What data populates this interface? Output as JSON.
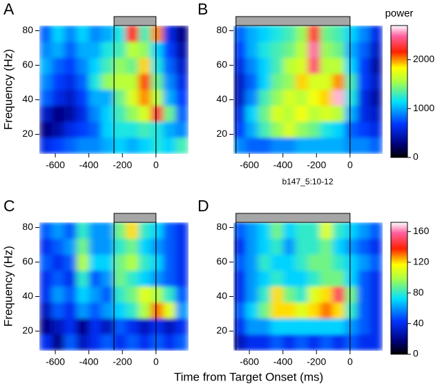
{
  "xlabel": "Time from Target Onset (ms)",
  "chart_data": [
    {
      "type": "heatmap",
      "label": "A",
      "ylabel": "Frequency (Hz)",
      "xlim": [
        -695,
        190
      ],
      "ylim": [
        9,
        83
      ],
      "xticks": [
        -600,
        -400,
        -200,
        0
      ],
      "yticks": [
        20,
        40,
        60,
        80
      ],
      "zlim": [
        0,
        2700
      ],
      "epoch": [
        -250,
        0
      ],
      "z": [
        [
          600,
          700,
          800,
          900,
          900,
          1000,
          1100,
          1000,
          1100,
          1200,
          1100,
          1300
        ],
        [
          300,
          400,
          600,
          700,
          800,
          1100,
          1200,
          1200,
          1300,
          1200,
          1000,
          900
        ],
        [
          500,
          300,
          400,
          600,
          900,
          1100,
          1300,
          1500,
          1700,
          2300,
          1400,
          800
        ],
        [
          800,
          600,
          500,
          700,
          1000,
          1000,
          1400,
          1700,
          2000,
          1600,
          1000,
          700
        ],
        [
          900,
          700,
          600,
          800,
          1200,
          1500,
          1600,
          1600,
          2100,
          1400,
          900,
          600
        ],
        [
          1000,
          800,
          700,
          900,
          1100,
          1300,
          1500,
          1400,
          1900,
          1200,
          800,
          500
        ],
        [
          900,
          1000,
          800,
          1000,
          1000,
          1200,
          1300,
          1600,
          1500,
          1100,
          700,
          400
        ],
        [
          800,
          1100,
          900,
          1100,
          900,
          1000,
          1200,
          2200,
          1300,
          2000,
          600,
          300
        ]
      ]
    },
    {
      "type": "heatmap",
      "label": "B",
      "annotation": "b147_5:10-12",
      "xlim": [
        -695,
        190
      ],
      "ylim": [
        9,
        83
      ],
      "xticks": [
        -600,
        -400,
        -200,
        0
      ],
      "yticks": [
        20,
        40,
        60,
        80
      ],
      "zlim": [
        0,
        2700
      ],
      "epoch": [
        -680,
        0
      ],
      "z": [
        [
          900,
          800,
          800,
          900,
          900,
          1000,
          1000,
          1000,
          1000,
          900,
          900,
          800
        ],
        [
          700,
          1000,
          1300,
          1500,
          1700,
          1500,
          1400,
          1200,
          1100,
          800,
          700,
          600
        ],
        [
          600,
          1100,
          1400,
          1700,
          1600,
          1800,
          1600,
          1700,
          1600,
          1000,
          600,
          500
        ],
        [
          500,
          900,
          1300,
          1500,
          1700,
          1600,
          1800,
          1900,
          2600,
          1200,
          600,
          400
        ],
        [
          500,
          800,
          1100,
          1400,
          1500,
          1900,
          1700,
          1700,
          2000,
          1300,
          700,
          500
        ],
        [
          600,
          900,
          1100,
          1300,
          1600,
          1700,
          2400,
          1600,
          1600,
          1100,
          700,
          400
        ],
        [
          700,
          1000,
          1200,
          1300,
          1400,
          1600,
          2500,
          1500,
          1400,
          1000,
          800,
          500
        ],
        [
          800,
          1000,
          1100,
          1200,
          1300,
          1500,
          2300,
          1400,
          1300,
          1100,
          900,
          600
        ]
      ]
    },
    {
      "type": "heatmap",
      "label": "C",
      "ylabel": "Frequency (Hz)",
      "xlim": [
        -695,
        190
      ],
      "ylim": [
        9,
        83
      ],
      "xticks": [
        -600,
        -400,
        -200,
        0
      ],
      "yticks": [
        20,
        40,
        60,
        80
      ],
      "zlim": [
        0,
        172
      ],
      "epoch": [
        -250,
        0
      ],
      "z": [
        [
          40,
          20,
          50,
          30,
          40,
          50,
          40,
          50,
          40,
          50,
          40,
          50
        ],
        [
          20,
          30,
          40,
          20,
          40,
          30,
          50,
          40,
          30,
          40,
          30,
          40
        ],
        [
          30,
          50,
          40,
          60,
          50,
          60,
          70,
          80,
          100,
          130,
          110,
          60
        ],
        [
          40,
          60,
          50,
          70,
          60,
          50,
          80,
          90,
          110,
          100,
          80,
          50
        ],
        [
          40,
          50,
          40,
          80,
          50,
          60,
          90,
          80,
          70,
          60,
          50,
          40
        ],
        [
          50,
          40,
          50,
          100,
          70,
          70,
          90,
          100,
          80,
          70,
          50,
          40
        ],
        [
          40,
          50,
          60,
          90,
          60,
          60,
          80,
          90,
          70,
          60,
          50,
          40
        ],
        [
          50,
          60,
          50,
          80,
          60,
          60,
          90,
          120,
          80,
          70,
          50,
          40
        ]
      ]
    },
    {
      "type": "heatmap",
      "label": "D",
      "xlim": [
        -695,
        190
      ],
      "ylim": [
        9,
        83
      ],
      "xticks": [
        -600,
        -400,
        -200,
        0
      ],
      "yticks": [
        20,
        40,
        60,
        80
      ],
      "zlim": [
        0,
        172
      ],
      "epoch": [
        -680,
        0
      ],
      "z": [
        [
          30,
          40,
          40,
          50,
          40,
          50,
          40,
          50,
          40,
          50,
          40,
          40
        ],
        [
          40,
          60,
          60,
          70,
          70,
          70,
          70,
          70,
          70,
          60,
          50,
          40
        ],
        [
          50,
          70,
          90,
          120,
          120,
          110,
          120,
          130,
          120,
          80,
          50,
          40
        ],
        [
          40,
          60,
          80,
          120,
          90,
          80,
          110,
          120,
          150,
          90,
          50,
          40
        ],
        [
          40,
          60,
          70,
          80,
          70,
          70,
          80,
          90,
          90,
          70,
          50,
          40
        ],
        [
          50,
          60,
          80,
          70,
          70,
          80,
          90,
          90,
          80,
          70,
          60,
          50
        ],
        [
          40,
          60,
          70,
          80,
          60,
          80,
          80,
          90,
          70,
          60,
          50,
          40
        ],
        [
          50,
          60,
          70,
          90,
          70,
          80,
          80,
          110,
          80,
          70,
          60,
          50
        ]
      ]
    },
    {
      "type": "colorbar",
      "title": "power",
      "zlim": [
        0,
        2700
      ],
      "zticks": [
        0,
        1000,
        2000
      ]
    },
    {
      "type": "colorbar",
      "zlim": [
        0,
        172
      ],
      "zticks": [
        0,
        40,
        80,
        120,
        160
      ]
    }
  ]
}
